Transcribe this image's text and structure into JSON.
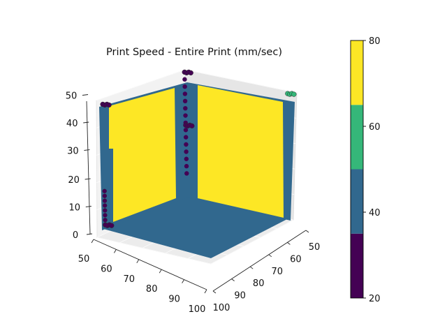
{
  "chart_data": {
    "type": "scatter",
    "projection": "3d",
    "title": "Print Speed - Entire Print (mm/sec)",
    "xlabel": "",
    "ylabel": "",
    "zlabel": "",
    "x_ticks": [
      "50",
      "60",
      "70",
      "80",
      "90",
      "100"
    ],
    "y_ticks": [
      "50",
      "60",
      "70",
      "80",
      "90",
      "100"
    ],
    "z_ticks": [
      "0",
      "10",
      "20",
      "30",
      "40",
      "50"
    ],
    "xlim": [
      50,
      100
    ],
    "ylim": [
      50,
      100
    ],
    "zlim": [
      0,
      55
    ],
    "grid": true,
    "colormap": "viridis",
    "colorbar": {
      "ticks": [
        "20",
        "40",
        "60",
        "80"
      ],
      "range": [
        20,
        80
      ],
      "bands": [
        {
          "from": 20,
          "to": 35,
          "color": "#440154"
        },
        {
          "from": 35,
          "to": 50,
          "color": "#31688e"
        },
        {
          "from": 50,
          "to": 65,
          "color": "#35b779"
        },
        {
          "from": 65,
          "to": 80,
          "color": "#fde725"
        }
      ]
    },
    "surfaces": [
      {
        "name": "",
        "region": "floor",
        "x_range": [
          50,
          100
        ],
        "y_range": [
          50,
          100
        ],
        "z": 0,
        "speed": 40
      },
      {
        "name": "",
        "region": "wall-left",
        "x": 50,
        "y_range": [
          50,
          100
        ],
        "z_range": [
          0,
          52
        ],
        "speed": 40
      },
      {
        "name": "",
        "region": "wall-right",
        "y": 50,
        "x_range": [
          50,
          100
        ],
        "z_range": [
          0,
          52
        ],
        "speed": 40
      },
      {
        "name": "",
        "region": "wall-left-infill",
        "x": 50,
        "y_range": [
          56,
          98
        ],
        "z_range": [
          2,
          50
        ],
        "speed": 80
      },
      {
        "name": "",
        "region": "wall-right-infill",
        "y": 50,
        "x_range": [
          56,
          98
        ],
        "z_range": [
          2,
          50
        ],
        "speed": 80
      }
    ],
    "points": [
      {
        "x": 50,
        "y": 50,
        "z": 52,
        "speed": 25
      },
      {
        "x": 50,
        "y": 50,
        "z": 30,
        "speed": 25
      },
      {
        "x": 50,
        "y": 98,
        "z": 52,
        "speed": 25
      },
      {
        "x": 50,
        "y": 98,
        "z": 2,
        "speed": 25
      },
      {
        "x": 98,
        "y": 50,
        "z": 52,
        "speed": 55
      }
    ]
  }
}
